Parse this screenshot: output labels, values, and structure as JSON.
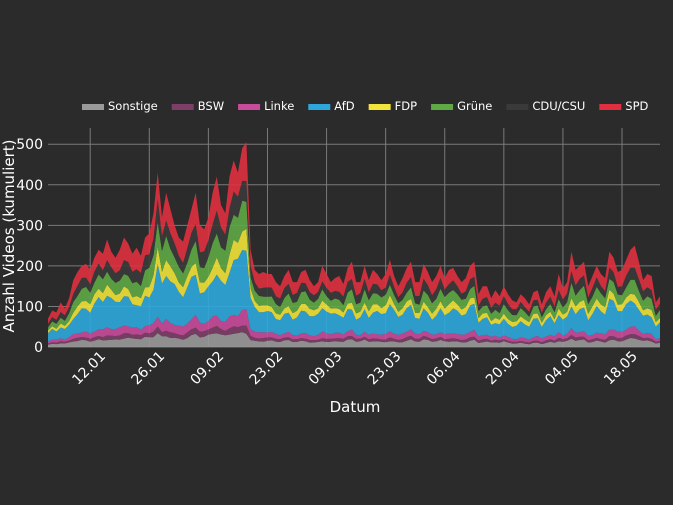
{
  "chart_data": {
    "type": "area",
    "stacked": true,
    "xlabel": "Datum",
    "ylabel": "Anzahl Videos (kumuliert)",
    "ylim": [
      0,
      540
    ],
    "yticks": [
      0,
      100,
      200,
      300,
      400,
      500
    ],
    "xticks": [
      {
        "day": 10,
        "label": "12.01"
      },
      {
        "day": 24,
        "label": "26.01"
      },
      {
        "day": 38,
        "label": "09.02"
      },
      {
        "day": 52,
        "label": "23.02"
      },
      {
        "day": 66,
        "label": "09.03"
      },
      {
        "day": 80,
        "label": "23.03"
      },
      {
        "day": 94,
        "label": "06.04"
      },
      {
        "day": 108,
        "label": "20.04"
      },
      {
        "day": 122,
        "label": "04.05"
      },
      {
        "day": 136,
        "label": "18.05"
      }
    ],
    "xlim": [
      0,
      145
    ],
    "grid": true,
    "legend_position": "top",
    "series_order_bottom_to_top": [
      "Sonstige",
      "BSW",
      "Linke",
      "AfD",
      "FDP",
      "Grüne",
      "CDU/CSU",
      "SPD"
    ],
    "series": [
      {
        "name": "Sonstige",
        "color": "#9a9a9a"
      },
      {
        "name": "BSW",
        "color": "#7d3f68"
      },
      {
        "name": "Linke",
        "color": "#c94b9c"
      },
      {
        "name": "AfD",
        "color": "#2ea8dc"
      },
      {
        "name": "FDP",
        "color": "#f2e33a"
      },
      {
        "name": "Grüne",
        "color": "#5ea845"
      },
      {
        "name": "CDU/CSU",
        "color": "#3a3a3a"
      },
      {
        "name": "SPD",
        "color": "#e0303f"
      }
    ],
    "total": [
      [
        0,
        70
      ],
      [
        1,
        90
      ],
      [
        2,
        85
      ],
      [
        3,
        110
      ],
      [
        4,
        95
      ],
      [
        5,
        120
      ],
      [
        6,
        165
      ],
      [
        7,
        185
      ],
      [
        8,
        200
      ],
      [
        9,
        205
      ],
      [
        10,
        190
      ],
      [
        11,
        220
      ],
      [
        12,
        240
      ],
      [
        13,
        230
      ],
      [
        14,
        265
      ],
      [
        15,
        235
      ],
      [
        16,
        220
      ],
      [
        17,
        240
      ],
      [
        18,
        270
      ],
      [
        19,
        255
      ],
      [
        20,
        230
      ],
      [
        21,
        245
      ],
      [
        22,
        225
      ],
      [
        23,
        270
      ],
      [
        24,
        280
      ],
      [
        25,
        330
      ],
      [
        26,
        430
      ],
      [
        27,
        320
      ],
      [
        28,
        380
      ],
      [
        29,
        340
      ],
      [
        30,
        300
      ],
      [
        31,
        270
      ],
      [
        32,
        260
      ],
      [
        33,
        300
      ],
      [
        34,
        340
      ],
      [
        35,
        380
      ],
      [
        36,
        300
      ],
      [
        37,
        290
      ],
      [
        38,
        320
      ],
      [
        39,
        380
      ],
      [
        40,
        420
      ],
      [
        41,
        350
      ],
      [
        42,
        330
      ],
      [
        43,
        420
      ],
      [
        44,
        460
      ],
      [
        45,
        430
      ],
      [
        46,
        490
      ],
      [
        47,
        505
      ],
      [
        48,
        240
      ],
      [
        49,
        190
      ],
      [
        50,
        180
      ],
      [
        51,
        185
      ],
      [
        52,
        180
      ],
      [
        53,
        180
      ],
      [
        54,
        160
      ],
      [
        55,
        150
      ],
      [
        56,
        175
      ],
      [
        57,
        190
      ],
      [
        58,
        160
      ],
      [
        59,
        160
      ],
      [
        60,
        185
      ],
      [
        61,
        190
      ],
      [
        62,
        165
      ],
      [
        63,
        150
      ],
      [
        64,
        160
      ],
      [
        65,
        200
      ],
      [
        66,
        180
      ],
      [
        67,
        160
      ],
      [
        68,
        170
      ],
      [
        69,
        175
      ],
      [
        70,
        155
      ],
      [
        71,
        195
      ],
      [
        72,
        210
      ],
      [
        73,
        160
      ],
      [
        74,
        160
      ],
      [
        75,
        200
      ],
      [
        76,
        165
      ],
      [
        77,
        190
      ],
      [
        78,
        180
      ],
      [
        79,
        165
      ],
      [
        80,
        180
      ],
      [
        81,
        215
      ],
      [
        82,
        175
      ],
      [
        83,
        150
      ],
      [
        84,
        170
      ],
      [
        85,
        195
      ],
      [
        86,
        210
      ],
      [
        87,
        160
      ],
      [
        88,
        160
      ],
      [
        89,
        205
      ],
      [
        90,
        185
      ],
      [
        91,
        160
      ],
      [
        92,
        175
      ],
      [
        93,
        200
      ],
      [
        94,
        170
      ],
      [
        95,
        190
      ],
      [
        96,
        195
      ],
      [
        97,
        175
      ],
      [
        98,
        160
      ],
      [
        99,
        170
      ],
      [
        100,
        200
      ],
      [
        101,
        210
      ],
      [
        102,
        130
      ],
      [
        103,
        150
      ],
      [
        104,
        150
      ],
      [
        105,
        120
      ],
      [
        106,
        140
      ],
      [
        107,
        125
      ],
      [
        108,
        150
      ],
      [
        109,
        130
      ],
      [
        110,
        115
      ],
      [
        111,
        110
      ],
      [
        112,
        130
      ],
      [
        113,
        120
      ],
      [
        114,
        105
      ],
      [
        115,
        135
      ],
      [
        116,
        140
      ],
      [
        117,
        105
      ],
      [
        118,
        135
      ],
      [
        119,
        150
      ],
      [
        120,
        125
      ],
      [
        121,
        180
      ],
      [
        122,
        145
      ],
      [
        123,
        160
      ],
      [
        124,
        235
      ],
      [
        125,
        190
      ],
      [
        126,
        200
      ],
      [
        127,
        210
      ],
      [
        128,
        150
      ],
      [
        129,
        175
      ],
      [
        130,
        200
      ],
      [
        131,
        180
      ],
      [
        132,
        170
      ],
      [
        133,
        235
      ],
      [
        134,
        220
      ],
      [
        135,
        185
      ],
      [
        136,
        190
      ],
      [
        137,
        215
      ],
      [
        138,
        240
      ],
      [
        139,
        250
      ],
      [
        140,
        210
      ],
      [
        141,
        165
      ],
      [
        142,
        180
      ],
      [
        143,
        175
      ],
      [
        144,
        110
      ],
      [
        145,
        125
      ]
    ],
    "share_by_series": {
      "Sonstige": 0.08,
      "BSW": 0.04,
      "Linke": 0.07,
      "AfD": 0.28,
      "FDP": 0.09,
      "Grüne": 0.14,
      "CDU/CSU": 0.12,
      "SPD": 0.18
    }
  }
}
